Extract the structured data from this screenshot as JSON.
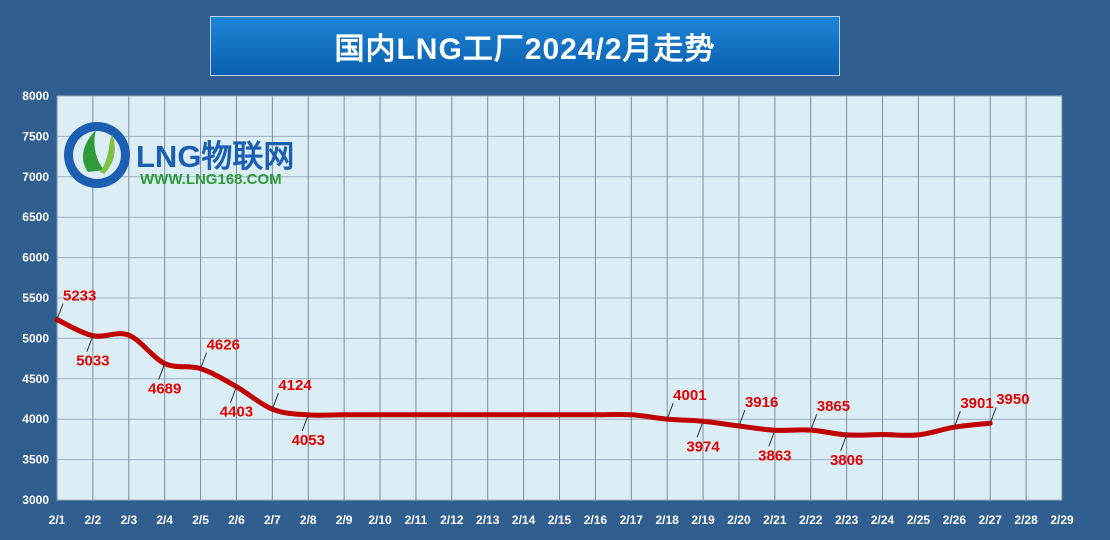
{
  "chart_data": {
    "type": "line",
    "title": "国内LNG工厂2024/2月走势",
    "xlabel": "",
    "ylabel": "",
    "categories": [
      "2/1",
      "2/2",
      "2/3",
      "2/4",
      "2/5",
      "2/6",
      "2/7",
      "2/8",
      "2/9",
      "2/10",
      "2/11",
      "2/12",
      "2/13",
      "2/14",
      "2/15",
      "2/16",
      "2/17",
      "2/18",
      "2/19",
      "2/20",
      "2/21",
      "2/22",
      "2/23",
      "2/24",
      "2/25",
      "2/26",
      "2/27",
      "2/28",
      "2/29"
    ],
    "ylim": [
      3000,
      8000
    ],
    "yticks": [
      3000,
      3500,
      4000,
      4500,
      5000,
      5500,
      6000,
      6500,
      7000,
      7500,
      8000
    ],
    "grid": true,
    "series": [
      {
        "color": "#c00000",
        "values": [
          5233,
          5033,
          5040,
          4689,
          4626,
          4403,
          4124,
          4053,
          4055,
          4055,
          4055,
          4055,
          4055,
          4055,
          4055,
          4055,
          4055,
          4001,
          3974,
          3916,
          3863,
          3865,
          3806,
          3810,
          3806,
          3901,
          3950,
          null,
          null
        ]
      }
    ],
    "data_labels": [
      {
        "index": 0,
        "text": "5233",
        "pos": "above"
      },
      {
        "index": 1,
        "text": "5033",
        "pos": "below"
      },
      {
        "index": 3,
        "text": "4689",
        "pos": "below"
      },
      {
        "index": 4,
        "text": "4626",
        "pos": "above"
      },
      {
        "index": 5,
        "text": "4403",
        "pos": "below"
      },
      {
        "index": 6,
        "text": "4124",
        "pos": "above"
      },
      {
        "index": 7,
        "text": "4053",
        "pos": "below"
      },
      {
        "index": 17,
        "text": "4001",
        "pos": "above"
      },
      {
        "index": 18,
        "text": "3974",
        "pos": "below"
      },
      {
        "index": 19,
        "text": "3916",
        "pos": "above"
      },
      {
        "index": 20,
        "text": "3863",
        "pos": "below"
      },
      {
        "index": 21,
        "text": "3865",
        "pos": "above"
      },
      {
        "index": 22,
        "text": "3806",
        "pos": "below"
      },
      {
        "index": 25,
        "text": "3901",
        "pos": "above"
      },
      {
        "index": 26,
        "text": "3950",
        "pos": "above"
      }
    ]
  },
  "colors": {
    "background": "#2f5e8f",
    "plot_area": "#dbeef6",
    "grid": "#7f8c9c",
    "line": "#c00000",
    "label": "#e00000"
  },
  "brand": {
    "logo_text": "LNG物联网",
    "website": "WWW.LNG168.COM"
  }
}
